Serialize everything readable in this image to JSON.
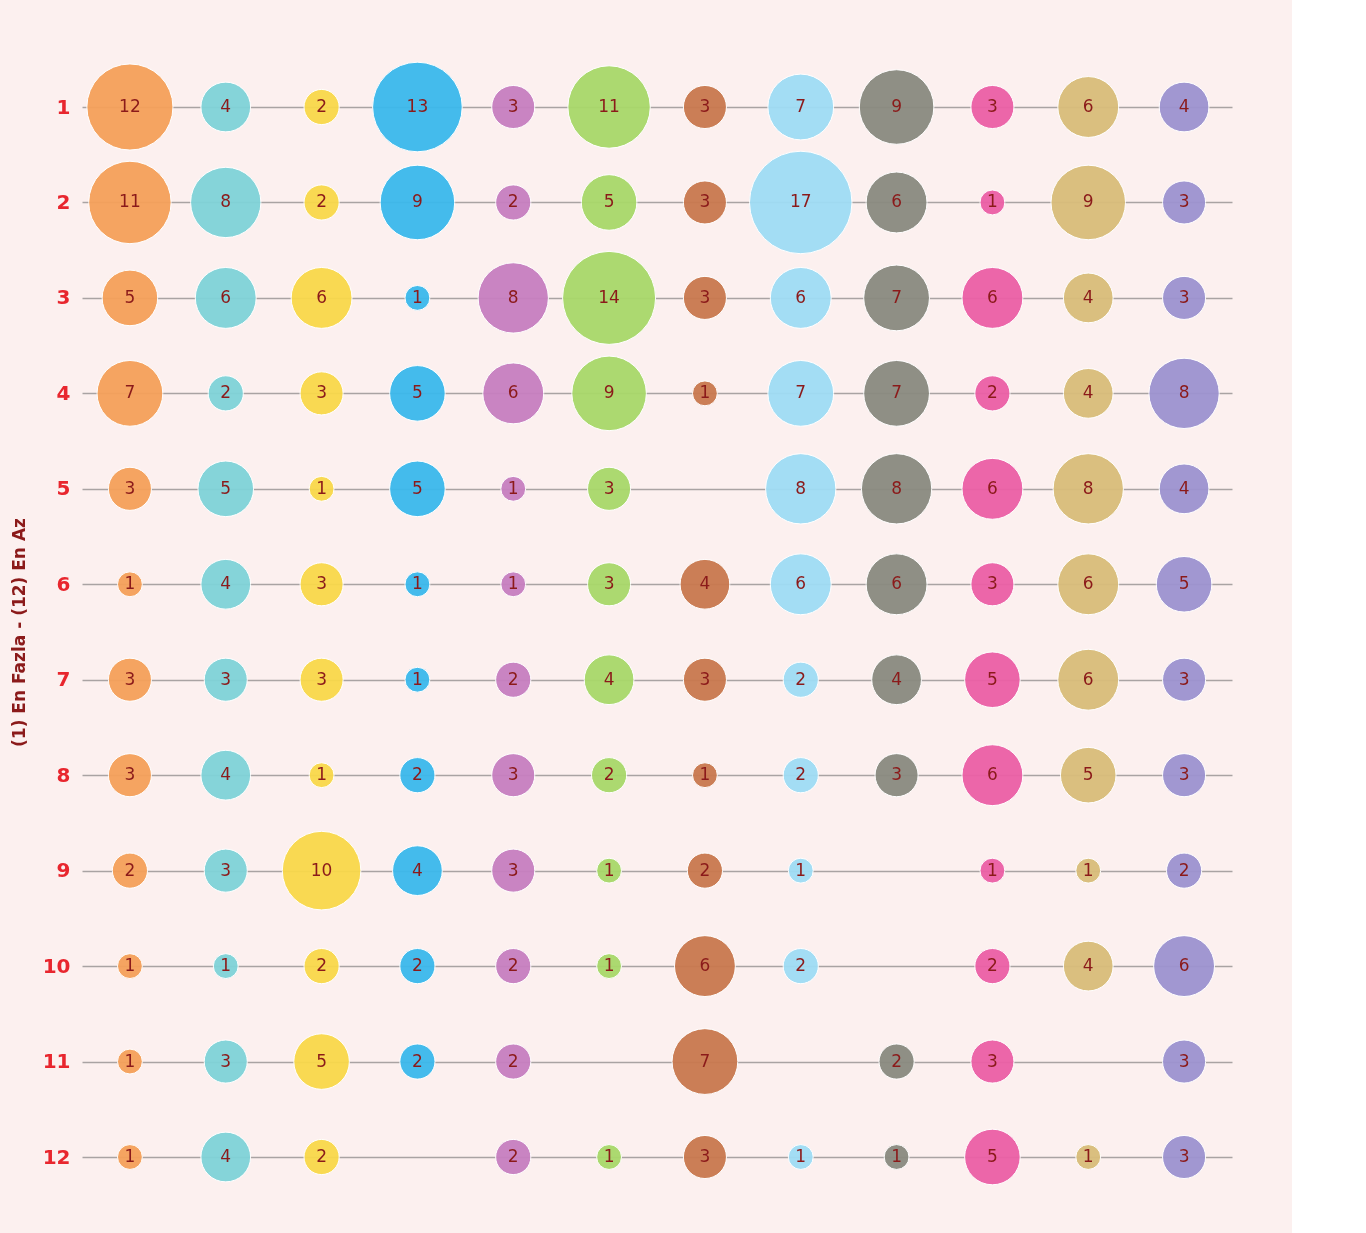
{
  "chart_data": {
    "type": "bubble",
    "ylabel": "(1) En Fazla - (12) En Az",
    "categories": [
      null,
      null,
      null,
      null,
      null,
      null,
      null,
      null,
      null,
      null,
      null,
      null
    ],
    "ylim": [
      12,
      1
    ],
    "yticks": [
      1,
      2,
      3,
      4,
      5,
      6,
      7,
      8,
      9,
      10,
      11,
      12
    ],
    "grid": "y",
    "tick_labels": "y",
    "series": [
      {
        "colors": [
          "#f5a05a",
          "#7fd3d8",
          "#f9d84a",
          "#3bb9ec",
          "#c77fc0",
          "#a8d86a",
          "#c9784e",
          "#9fdcf5",
          "#8a8a80",
          "#ec5fa6",
          "#d9bd7a",
          "#9d93d0"
        ],
        "values": [
          1,
          1,
          1,
          1,
          1,
          1,
          1,
          1,
          1,
          1,
          1,
          1
        ],
        "sizes": [
          12,
          4,
          2,
          13,
          3,
          11,
          3,
          7,
          9,
          3,
          6,
          4
        ],
        "value_labels": [
          "12",
          "4",
          "2",
          "13",
          "3",
          "11",
          "3",
          "7",
          "9",
          "3",
          "6",
          "4"
        ]
      },
      {
        "colors": [
          "#f5a05a",
          "#7fd3d8",
          "#f9d84a",
          "#3bb9ec",
          "#c77fc0",
          "#a8d86a",
          "#c9784e",
          "#9fdcf5",
          "#8a8a80",
          "#ec5fa6",
          "#d9bd7a",
          "#9d93d0"
        ],
        "values": [
          2,
          2,
          2,
          2,
          2,
          2,
          2,
          2,
          2,
          2,
          2,
          2
        ],
        "sizes": [
          11,
          8,
          2,
          9,
          2,
          5,
          3,
          17,
          6,
          1,
          9,
          3
        ],
        "value_labels": [
          "11",
          "8",
          "2",
          "9",
          "2",
          "5",
          "3",
          "17",
          "6",
          "1",
          "9",
          "3"
        ]
      },
      {
        "colors": [
          "#f5a05a",
          "#7fd3d8",
          "#f9d84a",
          "#3bb9ec",
          "#c77fc0",
          "#a8d86a",
          "#c9784e",
          "#9fdcf5",
          "#8a8a80",
          "#ec5fa6",
          "#d9bd7a",
          "#9d93d0"
        ],
        "values": [
          3,
          3,
          3,
          3,
          3,
          3,
          3,
          3,
          3,
          3,
          3,
          3
        ],
        "sizes": [
          5,
          6,
          6,
          1,
          8,
          14,
          3,
          6,
          7,
          6,
          4,
          3
        ],
        "value_labels": [
          "5",
          "6",
          "6",
          "1",
          "8",
          "14",
          "3",
          "6",
          "7",
          "6",
          "4",
          "3"
        ]
      },
      {
        "colors": [
          "#f5a05a",
          "#7fd3d8",
          "#f9d84a",
          "#3bb9ec",
          "#c77fc0",
          "#a8d86a",
          "#c9784e",
          "#9fdcf5",
          "#8a8a80",
          "#ec5fa6",
          "#d9bd7a",
          "#9d93d0"
        ],
        "values": [
          4,
          4,
          4,
          4,
          4,
          4,
          4,
          4,
          4,
          4,
          4,
          4
        ],
        "sizes": [
          7,
          2,
          3,
          5,
          6,
          9,
          1,
          7,
          7,
          2,
          4,
          8
        ],
        "value_labels": [
          "7",
          "2",
          "3",
          "5",
          "6",
          "9",
          "1",
          "7",
          "7",
          "2",
          "4",
          "8"
        ]
      },
      {
        "colors": [
          "#f5a05a",
          "#7fd3d8",
          "#f9d84a",
          "#3bb9ec",
          "#c77fc0",
          "#a8d86a",
          "#c9784e",
          "#9fdcf5",
          "#8a8a80",
          "#ec5fa6",
          "#d9bd7a",
          "#9d93d0"
        ],
        "values": [
          5,
          5,
          5,
          5,
          5,
          5,
          null,
          5,
          5,
          5,
          5,
          5
        ],
        "sizes": [
          3,
          5,
          1,
          5,
          1,
          3,
          null,
          8,
          8,
          6,
          8,
          4
        ],
        "value_labels": [
          "3",
          "5",
          "1",
          "5",
          "1",
          "3",
          null,
          "8",
          "8",
          "6",
          "8",
          "4"
        ]
      },
      {
        "colors": [
          "#f5a05a",
          "#7fd3d8",
          "#f9d84a",
          "#3bb9ec",
          "#c77fc0",
          "#a8d86a",
          "#c9784e",
          "#9fdcf5",
          "#8a8a80",
          "#ec5fa6",
          "#d9bd7a",
          "#9d93d0"
        ],
        "values": [
          6,
          6,
          6,
          6,
          6,
          6,
          6,
          6,
          6,
          6,
          6,
          6
        ],
        "sizes": [
          1,
          4,
          3,
          1,
          1,
          3,
          4,
          6,
          6,
          3,
          6,
          5
        ],
        "value_labels": [
          "1",
          "4",
          "3",
          "1",
          "1",
          "3",
          "4",
          "6",
          "6",
          "3",
          "6",
          "5"
        ]
      },
      {
        "colors": [
          "#f5a05a",
          "#7fd3d8",
          "#f9d84a",
          "#3bb9ec",
          "#c77fc0",
          "#a8d86a",
          "#c9784e",
          "#9fdcf5",
          "#8a8a80",
          "#ec5fa6",
          "#d9bd7a",
          "#9d93d0"
        ],
        "values": [
          7,
          7,
          7,
          7,
          7,
          7,
          7,
          7,
          7,
          7,
          7,
          7
        ],
        "sizes": [
          3,
          3,
          3,
          1,
          2,
          4,
          3,
          2,
          4,
          5,
          6,
          3
        ],
        "value_labels": [
          "3",
          "3",
          "3",
          "1",
          "2",
          "4",
          "3",
          "2",
          "4",
          "5",
          "6",
          "3"
        ]
      },
      {
        "colors": [
          "#f5a05a",
          "#7fd3d8",
          "#f9d84a",
          "#3bb9ec",
          "#c77fc0",
          "#a8d86a",
          "#c9784e",
          "#9fdcf5",
          "#8a8a80",
          "#ec5fa6",
          "#d9bd7a",
          "#9d93d0"
        ],
        "values": [
          8,
          8,
          8,
          8,
          8,
          8,
          8,
          8,
          8,
          8,
          8,
          8
        ],
        "sizes": [
          3,
          4,
          1,
          2,
          3,
          2,
          1,
          2,
          3,
          6,
          5,
          3
        ],
        "value_labels": [
          "3",
          "4",
          "1",
          "2",
          "3",
          "2",
          "1",
          "2",
          "3",
          "6",
          "5",
          "3"
        ]
      },
      {
        "colors": [
          "#f5a05a",
          "#7fd3d8",
          "#f9d84a",
          "#3bb9ec",
          "#c77fc0",
          "#a8d86a",
          "#c9784e",
          "#9fdcf5",
          "#8a8a80",
          "#ec5fa6",
          "#d9bd7a",
          "#9d93d0"
        ],
        "values": [
          9,
          9,
          9,
          9,
          9,
          9,
          9,
          9,
          null,
          9,
          9,
          9
        ],
        "sizes": [
          2,
          3,
          10,
          4,
          3,
          1,
          2,
          1,
          null,
          1,
          1,
          2
        ],
        "value_labels": [
          "2",
          "3",
          "10",
          "4",
          "3",
          "1",
          "2",
          "1",
          null,
          "1",
          "1",
          "2"
        ]
      },
      {
        "colors": [
          "#f5a05a",
          "#7fd3d8",
          "#f9d84a",
          "#3bb9ec",
          "#c77fc0",
          "#a8d86a",
          "#c9784e",
          "#9fdcf5",
          "#8a8a80",
          "#ec5fa6",
          "#d9bd7a",
          "#9d93d0"
        ],
        "values": [
          10,
          10,
          10,
          10,
          10,
          10,
          10,
          10,
          null,
          10,
          10,
          10
        ],
        "sizes": [
          1,
          1,
          2,
          2,
          2,
          1,
          6,
          2,
          null,
          2,
          4,
          6
        ],
        "value_labels": [
          "1",
          "1",
          "2",
          "2",
          "2",
          "1",
          "6",
          "2",
          null,
          "2",
          "4",
          "6"
        ]
      },
      {
        "colors": [
          "#f5a05a",
          "#7fd3d8",
          "#f9d84a",
          "#3bb9ec",
          "#c77fc0",
          "#a8d86a",
          "#c9784e",
          "#9fdcf5",
          "#8a8a80",
          "#ec5fa6",
          "#d9bd7a",
          "#9d93d0"
        ],
        "values": [
          11,
          11,
          11,
          11,
          11,
          null,
          11,
          null,
          11,
          11,
          null,
          11
        ],
        "sizes": [
          1,
          3,
          5,
          2,
          2,
          null,
          7,
          null,
          2,
          3,
          null,
          3
        ],
        "value_labels": [
          "1",
          "3",
          "5",
          "2",
          "2",
          null,
          "7",
          null,
          "2",
          "3",
          null,
          "3"
        ]
      },
      {
        "colors": [
          "#f5a05a",
          "#7fd3d8",
          "#f9d84a",
          "#3bb9ec",
          "#c77fc0",
          "#a8d86a",
          "#c9784e",
          "#9fdcf5",
          "#8a8a80",
          "#ec5fa6",
          "#d9bd7a",
          "#9d93d0"
        ],
        "values": [
          12,
          12,
          12,
          null,
          12,
          12,
          12,
          12,
          12,
          12,
          12,
          12
        ],
        "sizes": [
          1,
          4,
          2,
          null,
          2,
          1,
          3,
          1,
          1,
          5,
          1,
          3
        ],
        "value_labels": [
          "1",
          "4",
          "2",
          null,
          "2",
          "1",
          "3",
          "1",
          "1",
          "5",
          "1",
          "3"
        ]
      }
    ]
  }
}
